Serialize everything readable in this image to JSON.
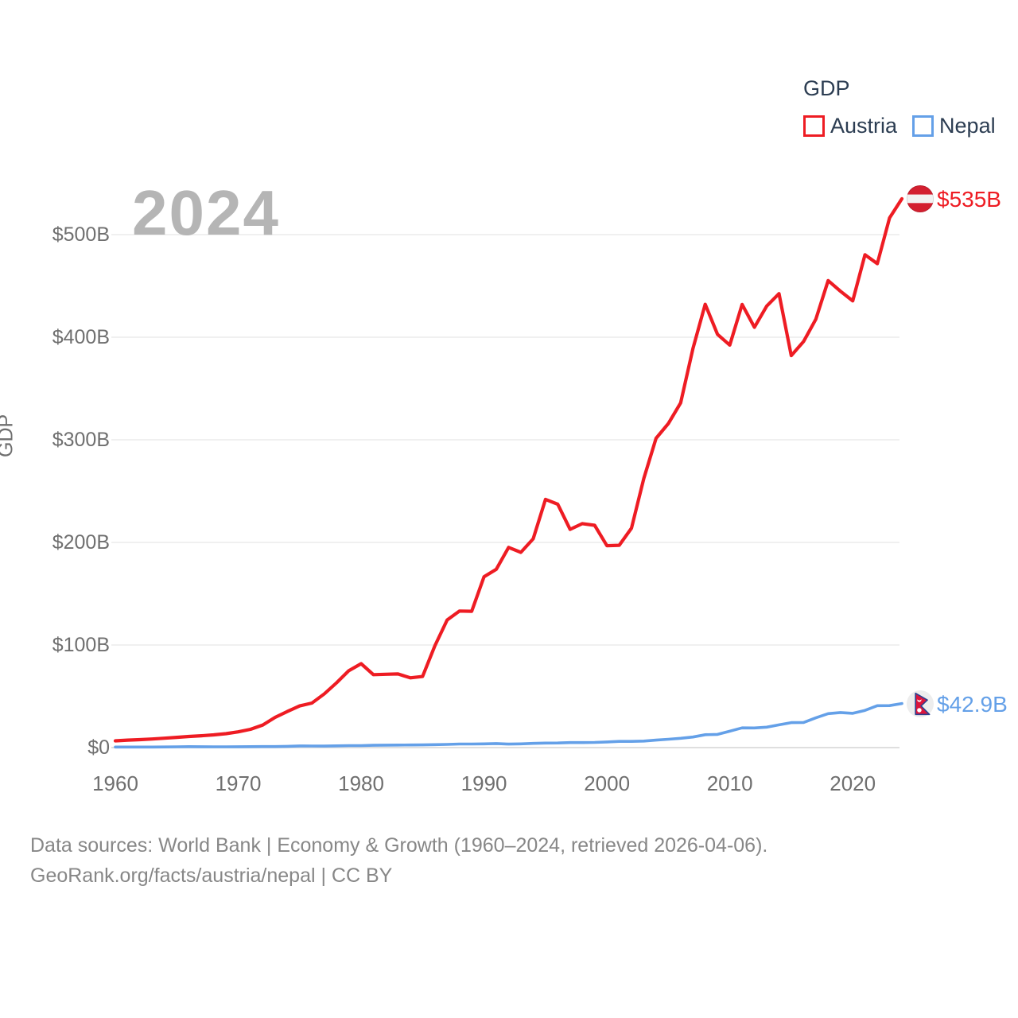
{
  "watermark_year": "2024",
  "legend": {
    "title": "GDP",
    "items": [
      {
        "label": "Austria",
        "color": "#ee1c23"
      },
      {
        "label": "Nepal",
        "color": "#64a0e8"
      }
    ]
  },
  "chart_data": {
    "type": "line",
    "title": "GDP",
    "ylabel": "GDP",
    "xlabel": "",
    "xlim": [
      1960,
      2024
    ],
    "ylim": [
      0,
      560
    ],
    "grid": true,
    "legend_position": "top-right",
    "x_ticks": [
      1960,
      1970,
      1980,
      1990,
      2000,
      2010,
      2020
    ],
    "y_ticks": [
      {
        "value": 0,
        "label": "$0"
      },
      {
        "value": 100,
        "label": "$100B"
      },
      {
        "value": 200,
        "label": "$200B"
      },
      {
        "value": 300,
        "label": "$300B"
      },
      {
        "value": 400,
        "label": "$400B"
      },
      {
        "value": 500,
        "label": "$500B"
      }
    ],
    "x": [
      1960,
      1961,
      1962,
      1963,
      1964,
      1965,
      1966,
      1967,
      1968,
      1969,
      1970,
      1971,
      1972,
      1973,
      1974,
      1975,
      1976,
      1977,
      1978,
      1979,
      1980,
      1981,
      1982,
      1983,
      1984,
      1985,
      1986,
      1987,
      1988,
      1989,
      1990,
      1991,
      1992,
      1993,
      1994,
      1995,
      1996,
      1997,
      1998,
      1999,
      2000,
      2001,
      2002,
      2003,
      2004,
      2005,
      2006,
      2007,
      2008,
      2009,
      2010,
      2011,
      2012,
      2013,
      2014,
      2015,
      2016,
      2017,
      2018,
      2019,
      2020,
      2021,
      2022,
      2023,
      2024
    ],
    "series": [
      {
        "name": "Austria",
        "color": "#ee1c23",
        "unit": "billion USD",
        "end_label": "$535B",
        "end_value": 535,
        "values": [
          6.59,
          7.31,
          7.76,
          8.37,
          9.17,
          9.99,
          10.89,
          11.58,
          12.44,
          13.58,
          15.37,
          17.85,
          22.04,
          29.42,
          35.18,
          40.6,
          43.38,
          52.32,
          63.17,
          74.97,
          81.76,
          71.09,
          71.45,
          71.78,
          67.95,
          69.33,
          99.21,
          124.33,
          133.1,
          132.9,
          166.5,
          173.8,
          195.1,
          190.3,
          203.5,
          241.9,
          237.2,
          212.7,
          218.3,
          216.7,
          196.8,
          197.2,
          213.9,
          262.3,
          301.5,
          315.9,
          336.0,
          389.0,
          432.1,
          402.8,
          392.3,
          431.9,
          409.7,
          430.3,
          442.5,
          382.1,
          395.8,
          417.5,
          455.2,
          444.9,
          435.4,
          480.4,
          471.7,
          516.3,
          535.0
        ]
      },
      {
        "name": "Nepal",
        "color": "#64a0e8",
        "unit": "billion USD",
        "end_label": "$42.9B",
        "end_value": 42.9,
        "values": [
          0.51,
          0.54,
          0.55,
          0.52,
          0.6,
          0.74,
          0.91,
          0.84,
          0.77,
          0.79,
          0.87,
          0.92,
          1.01,
          0.97,
          1.26,
          1.61,
          1.53,
          1.49,
          1.68,
          1.92,
          1.95,
          2.28,
          2.39,
          2.45,
          2.58,
          2.62,
          2.85,
          3.09,
          3.49,
          3.52,
          3.63,
          3.92,
          3.38,
          3.66,
          4.07,
          4.4,
          4.52,
          4.92,
          4.86,
          5.03,
          5.49,
          6.01,
          6.05,
          6.33,
          7.27,
          8.13,
          9.04,
          10.33,
          12.55,
          12.85,
          16.0,
          19.21,
          19.18,
          19.94,
          22.16,
          24.36,
          24.52,
          28.97,
          33.11,
          34.19,
          33.43,
          36.29,
          40.83,
          40.91,
          42.92
        ]
      }
    ]
  },
  "footer": {
    "line1": "Data sources: World Bank | Economy & Growth (1960–2024, retrieved 2026-04-06).",
    "line2": "GeoRank.org/facts/austria/nepal | CC BY"
  }
}
